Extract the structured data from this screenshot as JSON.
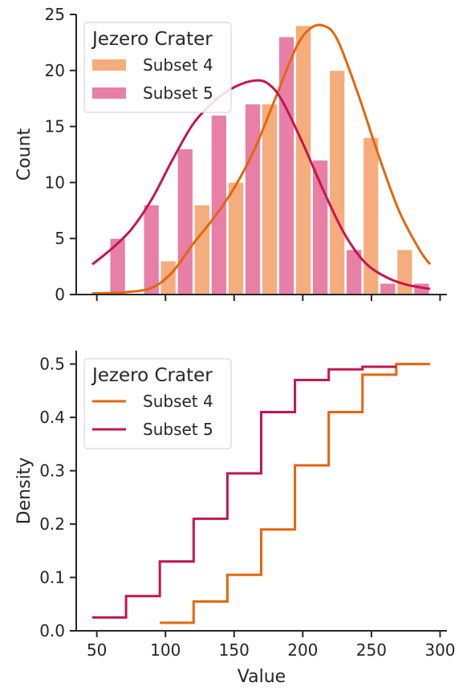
{
  "chart_data": [
    {
      "type": "bar",
      "panel": "top",
      "ylabel": "Count",
      "xlabel": "",
      "xlim": [
        35,
        305
      ],
      "ylim": [
        0,
        25
      ],
      "yticks": [
        0,
        5,
        10,
        15,
        20,
        25
      ],
      "xticks": [
        50,
        100,
        150,
        200,
        250,
        300
      ],
      "bin_edges": [
        46.7,
        71.3,
        95.9,
        120.5,
        145.1,
        169.7,
        194.3,
        218.9,
        243.5,
        268.1,
        292.7
      ],
      "legend": {
        "title": "Jezero Crater",
        "position": "top-left"
      },
      "series": [
        {
          "name": "Subset 4",
          "color": "#f5ad7d",
          "kde_color": "#e5660c",
          "counts": [
            0,
            0,
            3,
            8,
            10,
            17,
            24,
            20,
            14,
            4
          ],
          "kde": [
            [
              46.7,
              0.1
            ],
            [
              70,
              0.2
            ],
            [
              90,
              0.6
            ],
            [
              105,
              2.0
            ],
            [
              120,
              4.5
            ],
            [
              135,
              6.8
            ],
            [
              150,
              9.5
            ],
            [
              165,
              13.0
            ],
            [
              180,
              17.5
            ],
            [
              195,
              22.0
            ],
            [
              205,
              23.7
            ],
            [
              215,
              24.0
            ],
            [
              225,
              22.8
            ],
            [
              240,
              18.0
            ],
            [
              255,
              12.5
            ],
            [
              270,
              7.5
            ],
            [
              285,
              4.0
            ],
            [
              292.7,
              2.7
            ]
          ]
        },
        {
          "name": "Subset 5",
          "color": "#e77fa6",
          "kde_color": "#c5154f",
          "counts": [
            5,
            8,
            13,
            16,
            17,
            23,
            12,
            4,
            1,
            1
          ],
          "kde": [
            [
              46.7,
              2.7
            ],
            [
              60,
              4.0
            ],
            [
              75,
              5.8
            ],
            [
              90,
              8.5
            ],
            [
              105,
              12.0
            ],
            [
              120,
              15.2
            ],
            [
              135,
              17.2
            ],
            [
              150,
              18.5
            ],
            [
              165,
              19.1
            ],
            [
              175,
              18.8
            ],
            [
              185,
              17.3
            ],
            [
              200,
              13.5
            ],
            [
              215,
              9.3
            ],
            [
              230,
              5.5
            ],
            [
              245,
              2.9
            ],
            [
              260,
              1.6
            ],
            [
              275,
              0.9
            ],
            [
              292.7,
              0.5
            ]
          ]
        }
      ]
    },
    {
      "type": "line",
      "panel": "bottom",
      "ylabel": "Density",
      "xlabel": "Value",
      "xlim": [
        35,
        305
      ],
      "ylim": [
        0,
        0.525
      ],
      "yticks": [
        0.0,
        0.1,
        0.2,
        0.3,
        0.4,
        0.5
      ],
      "xticks": [
        50,
        100,
        150,
        200,
        250,
        300
      ],
      "ytick_labels": [
        "0.0",
        "0.1",
        "0.2",
        "0.3",
        "0.4",
        "0.5"
      ],
      "xtick_labels": [
        "50",
        "100",
        "150",
        "200",
        "250",
        "300"
      ],
      "legend": {
        "title": "Jezero Crater",
        "position": "top-left"
      },
      "series": [
        {
          "name": "Subset 4",
          "color": "#e5660c",
          "step_x": [
            95.9,
            120.5,
            145.1,
            169.7,
            194.3,
            218.9,
            243.5,
            268.1,
            292.7
          ],
          "step_y": [
            0.015,
            0.055,
            0.105,
            0.19,
            0.31,
            0.41,
            0.48,
            0.5
          ]
        },
        {
          "name": "Subset 5",
          "color": "#c5154f",
          "step_x": [
            46.7,
            71.3,
            95.9,
            120.5,
            145.1,
            169.7,
            194.3,
            218.9,
            243.5,
            268.1
          ],
          "step_y": [
            0.025,
            0.065,
            0.13,
            0.21,
            0.295,
            0.41,
            0.47,
            0.49,
            0.495
          ]
        }
      ]
    }
  ]
}
